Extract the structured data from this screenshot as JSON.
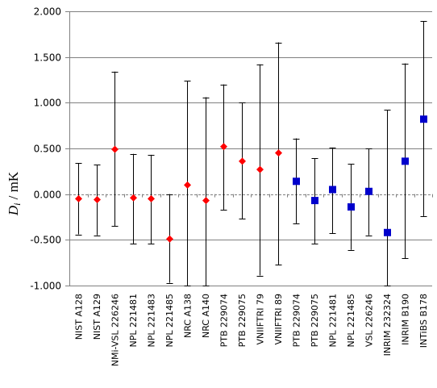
{
  "chart_data": {
    "type": "scatter",
    "ylabel_main": "D",
    "ylabel_sub": "i",
    "ylabel_unit": " / mK",
    "ylim": [
      -1.0,
      2.0
    ],
    "yticks": [
      "-1.000",
      "-0.500",
      "0.000",
      "0.500",
      "1.000",
      "1.500",
      "2.000"
    ],
    "ytick_values": [
      -1.0,
      -0.5,
      0.0,
      0.5,
      1.0,
      1.5,
      2.0
    ],
    "grid": "horizontal",
    "categories": [
      "NIST A128",
      "NIST A129",
      "NMi-VSL 226246",
      "NPL 221481",
      "NPL 221483",
      "NPL 221485",
      "NRC A138",
      "NRC A140",
      "PTB 229074",
      "PTB 229075",
      "VNIIFTRI 79",
      "VNIIFTRI 89",
      "PTB 229074",
      "PTB 229075",
      "NPL 221481",
      "NPL 221485",
      "VSL 226246",
      "INRIM 232324",
      "INRIM B190",
      "INTiBS B178"
    ],
    "series": [
      {
        "marker": "diamond",
        "color": "#ff0000",
        "points": [
          {
            "i": 0,
            "y": -0.05,
            "lo": -0.44,
            "hi": 0.34
          },
          {
            "i": 1,
            "y": -0.06,
            "lo": -0.45,
            "hi": 0.32
          },
          {
            "i": 2,
            "y": 0.49,
            "lo": -0.35,
            "hi": 1.34
          },
          {
            "i": 3,
            "y": -0.04,
            "lo": -0.54,
            "hi": 0.44
          },
          {
            "i": 4,
            "y": -0.05,
            "lo": -0.54,
            "hi": 0.43
          },
          {
            "i": 5,
            "y": -0.49,
            "lo": -0.97,
            "hi": 0.0
          },
          {
            "i": 6,
            "y": 0.1,
            "lo": -1.0,
            "hi": 1.24
          },
          {
            "i": 7,
            "y": -0.07,
            "lo": -1.0,
            "hi": 1.06
          },
          {
            "i": 8,
            "y": 0.52,
            "lo": -0.17,
            "hi": 1.2
          },
          {
            "i": 9,
            "y": 0.36,
            "lo": -0.27,
            "hi": 1.0
          },
          {
            "i": 10,
            "y": 0.27,
            "lo": -0.89,
            "hi": 1.42
          },
          {
            "i": 11,
            "y": 0.45,
            "lo": -0.77,
            "hi": 1.66
          }
        ]
      },
      {
        "marker": "square",
        "color": "#0000cc",
        "points": [
          {
            "i": 12,
            "y": 0.14,
            "lo": -0.32,
            "hi": 0.61
          },
          {
            "i": 13,
            "y": -0.07,
            "lo": -0.54,
            "hi": 0.39
          },
          {
            "i": 14,
            "y": 0.05,
            "lo": -0.43,
            "hi": 0.51
          },
          {
            "i": 15,
            "y": -0.14,
            "lo": -0.61,
            "hi": 0.33
          },
          {
            "i": 16,
            "y": 0.03,
            "lo": -0.45,
            "hi": 0.5
          },
          {
            "i": 17,
            "y": -0.42,
            "lo": -1.0,
            "hi": 0.92
          },
          {
            "i": 18,
            "y": 0.36,
            "lo": -0.7,
            "hi": 1.43
          },
          {
            "i": 19,
            "y": 0.82,
            "lo": -0.24,
            "hi": 1.89
          }
        ]
      }
    ]
  }
}
